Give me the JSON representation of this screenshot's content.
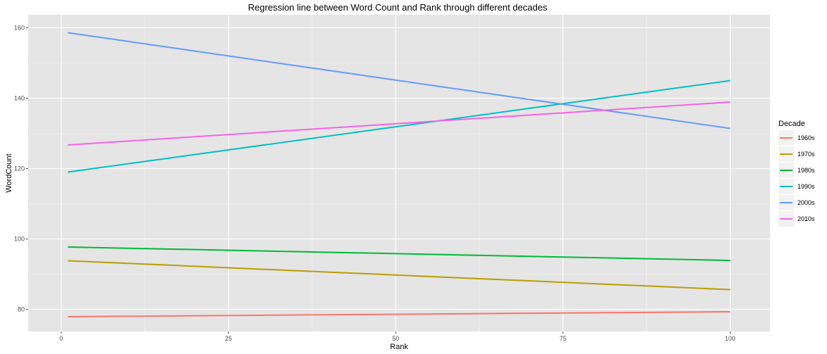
{
  "chart_data": {
    "type": "line",
    "title": "Regression line between Word Count and Rank through different decades",
    "xlabel": "Rank",
    "ylabel": "WordCount",
    "xlim": [
      -4.95,
      105.95
    ],
    "ylim": [
      73.7,
      163.7
    ],
    "x_ticks": [
      0,
      25,
      50,
      75,
      100
    ],
    "x_tick_labels": [
      "0",
      "25",
      "50",
      "75",
      "100"
    ],
    "y_ticks": [
      80,
      100,
      120,
      140,
      160
    ],
    "y_tick_labels": [
      "80",
      "100",
      "120",
      "140",
      "160"
    ],
    "grid": true,
    "legend": {
      "title": "Decade",
      "position": "right"
    },
    "series": [
      {
        "name": "1960s",
        "color": "#F8766D",
        "x": [
          1,
          100
        ],
        "y": [
          77.9,
          79.3
        ]
      },
      {
        "name": "1970s",
        "color": "#B79F00",
        "x": [
          1,
          100
        ],
        "y": [
          93.8,
          85.6
        ]
      },
      {
        "name": "1980s",
        "color": "#00BA38",
        "x": [
          1,
          100
        ],
        "y": [
          97.7,
          93.9
        ]
      },
      {
        "name": "1990s",
        "color": "#00BFC4",
        "x": [
          1,
          100
        ],
        "y": [
          119.0,
          145.0
        ]
      },
      {
        "name": "2000s",
        "color": "#619CFF",
        "x": [
          1,
          100
        ],
        "y": [
          158.6,
          131.4
        ]
      },
      {
        "name": "2010s",
        "color": "#F564E3",
        "x": [
          1,
          100
        ],
        "y": [
          126.7,
          138.9
        ]
      }
    ]
  }
}
